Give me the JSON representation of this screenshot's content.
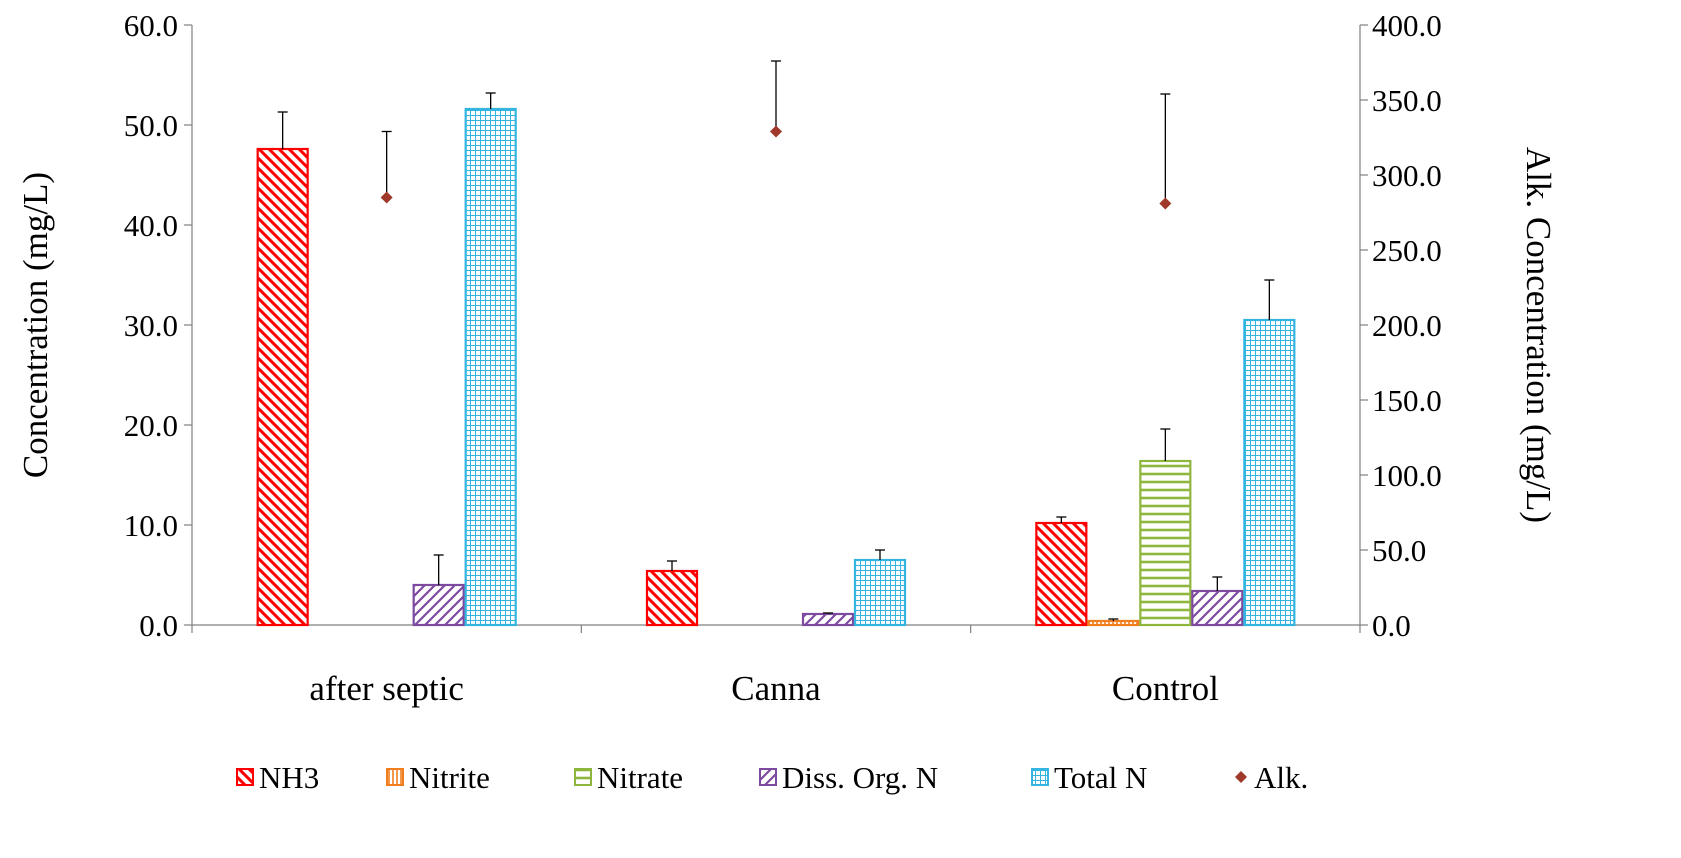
{
  "chart_data": {
    "type": "bar",
    "title": "",
    "categories": [
      "after septic",
      "Canna",
      "Control"
    ],
    "y_left": {
      "label": "Concentration (mg/L)",
      "range": [
        0,
        60
      ],
      "ticks": [
        "0.0",
        "10.0",
        "20.0",
        "30.0",
        "40.0",
        "50.0",
        "60.0"
      ]
    },
    "y_right": {
      "label": "Alk. Concentration (mg/L)",
      "range": [
        0,
        400
      ],
      "ticks": [
        "0.0",
        "50.0",
        "100.0",
        "150.0",
        "200.0",
        "250.0",
        "300.0",
        "350.0",
        "400.0"
      ]
    },
    "grid": false,
    "legend_position": "bottom",
    "series": [
      {
        "name": "NH3",
        "axis": "left",
        "color": "#ff0000",
        "pattern": "diag-down",
        "values": [
          47.6,
          5.4,
          10.2
        ],
        "error": [
          3.7,
          1.0,
          0.6
        ]
      },
      {
        "name": "Nitrite",
        "axis": "left",
        "color": "#f07d1e",
        "pattern": "vertical",
        "values": [
          0,
          0,
          0.4
        ],
        "error": [
          0,
          0,
          0.2
        ]
      },
      {
        "name": "Nitrate",
        "axis": "left",
        "color": "#8fb63c",
        "pattern": "horizontal",
        "values": [
          0,
          0,
          16.4
        ],
        "error": [
          0,
          0,
          3.2
        ]
      },
      {
        "name": "Diss. Org. N",
        "axis": "left",
        "color": "#7d4aa0",
        "pattern": "diag-up",
        "values": [
          4.0,
          1.1,
          3.4
        ],
        "error": [
          3.0,
          0.1,
          1.4
        ]
      },
      {
        "name": "Total N",
        "axis": "left",
        "color": "#33b5e0",
        "pattern": "grid",
        "values": [
          51.6,
          6.5,
          30.5
        ],
        "error": [
          1.6,
          1.0,
          4.0
        ]
      },
      {
        "name": "Alk.",
        "axis": "right",
        "color": "#a0392a",
        "marker": "diamond",
        "values": [
          285,
          329,
          281
        ],
        "error": [
          44,
          47,
          73
        ]
      }
    ]
  }
}
